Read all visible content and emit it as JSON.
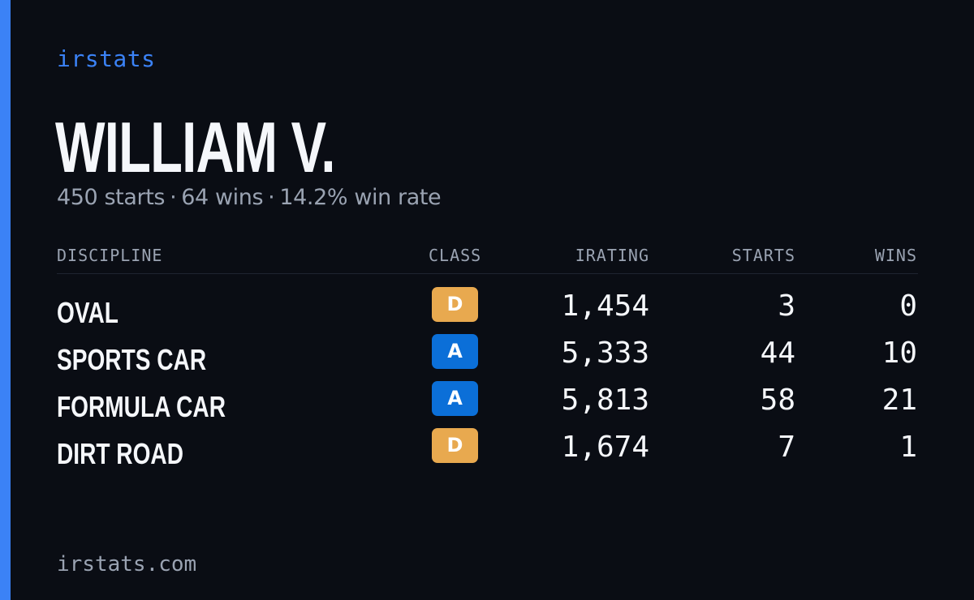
{
  "brand": "irstats",
  "driver": {
    "name": "WILLIAM V.",
    "summary": {
      "starts": "450 starts",
      "wins": "64 wins",
      "win_rate": "14.2% win rate",
      "separator": "·"
    }
  },
  "table": {
    "headers": {
      "discipline": "DISCIPLINE",
      "class": "CLASS",
      "irating": "IRATING",
      "starts": "STARTS",
      "wins": "WINS"
    },
    "rows": [
      {
        "discipline": "OVAL",
        "class": "D",
        "irating": "1,454",
        "starts": "3",
        "wins": "0"
      },
      {
        "discipline": "SPORTS CAR",
        "class": "A",
        "irating": "5,333",
        "starts": "44",
        "wins": "10"
      },
      {
        "discipline": "FORMULA CAR",
        "class": "A",
        "irating": "5,813",
        "starts": "58",
        "wins": "21"
      },
      {
        "discipline": "DIRT ROAD",
        "class": "D",
        "irating": "1,674",
        "starts": "7",
        "wins": "1"
      }
    ]
  },
  "footer": "irstats.com",
  "colors": {
    "background": "#0a0d14",
    "accent": "#3b82f6",
    "class_d": "#e8a94f",
    "class_a": "#0b6fd8",
    "muted_text": "#9aa3b2"
  }
}
